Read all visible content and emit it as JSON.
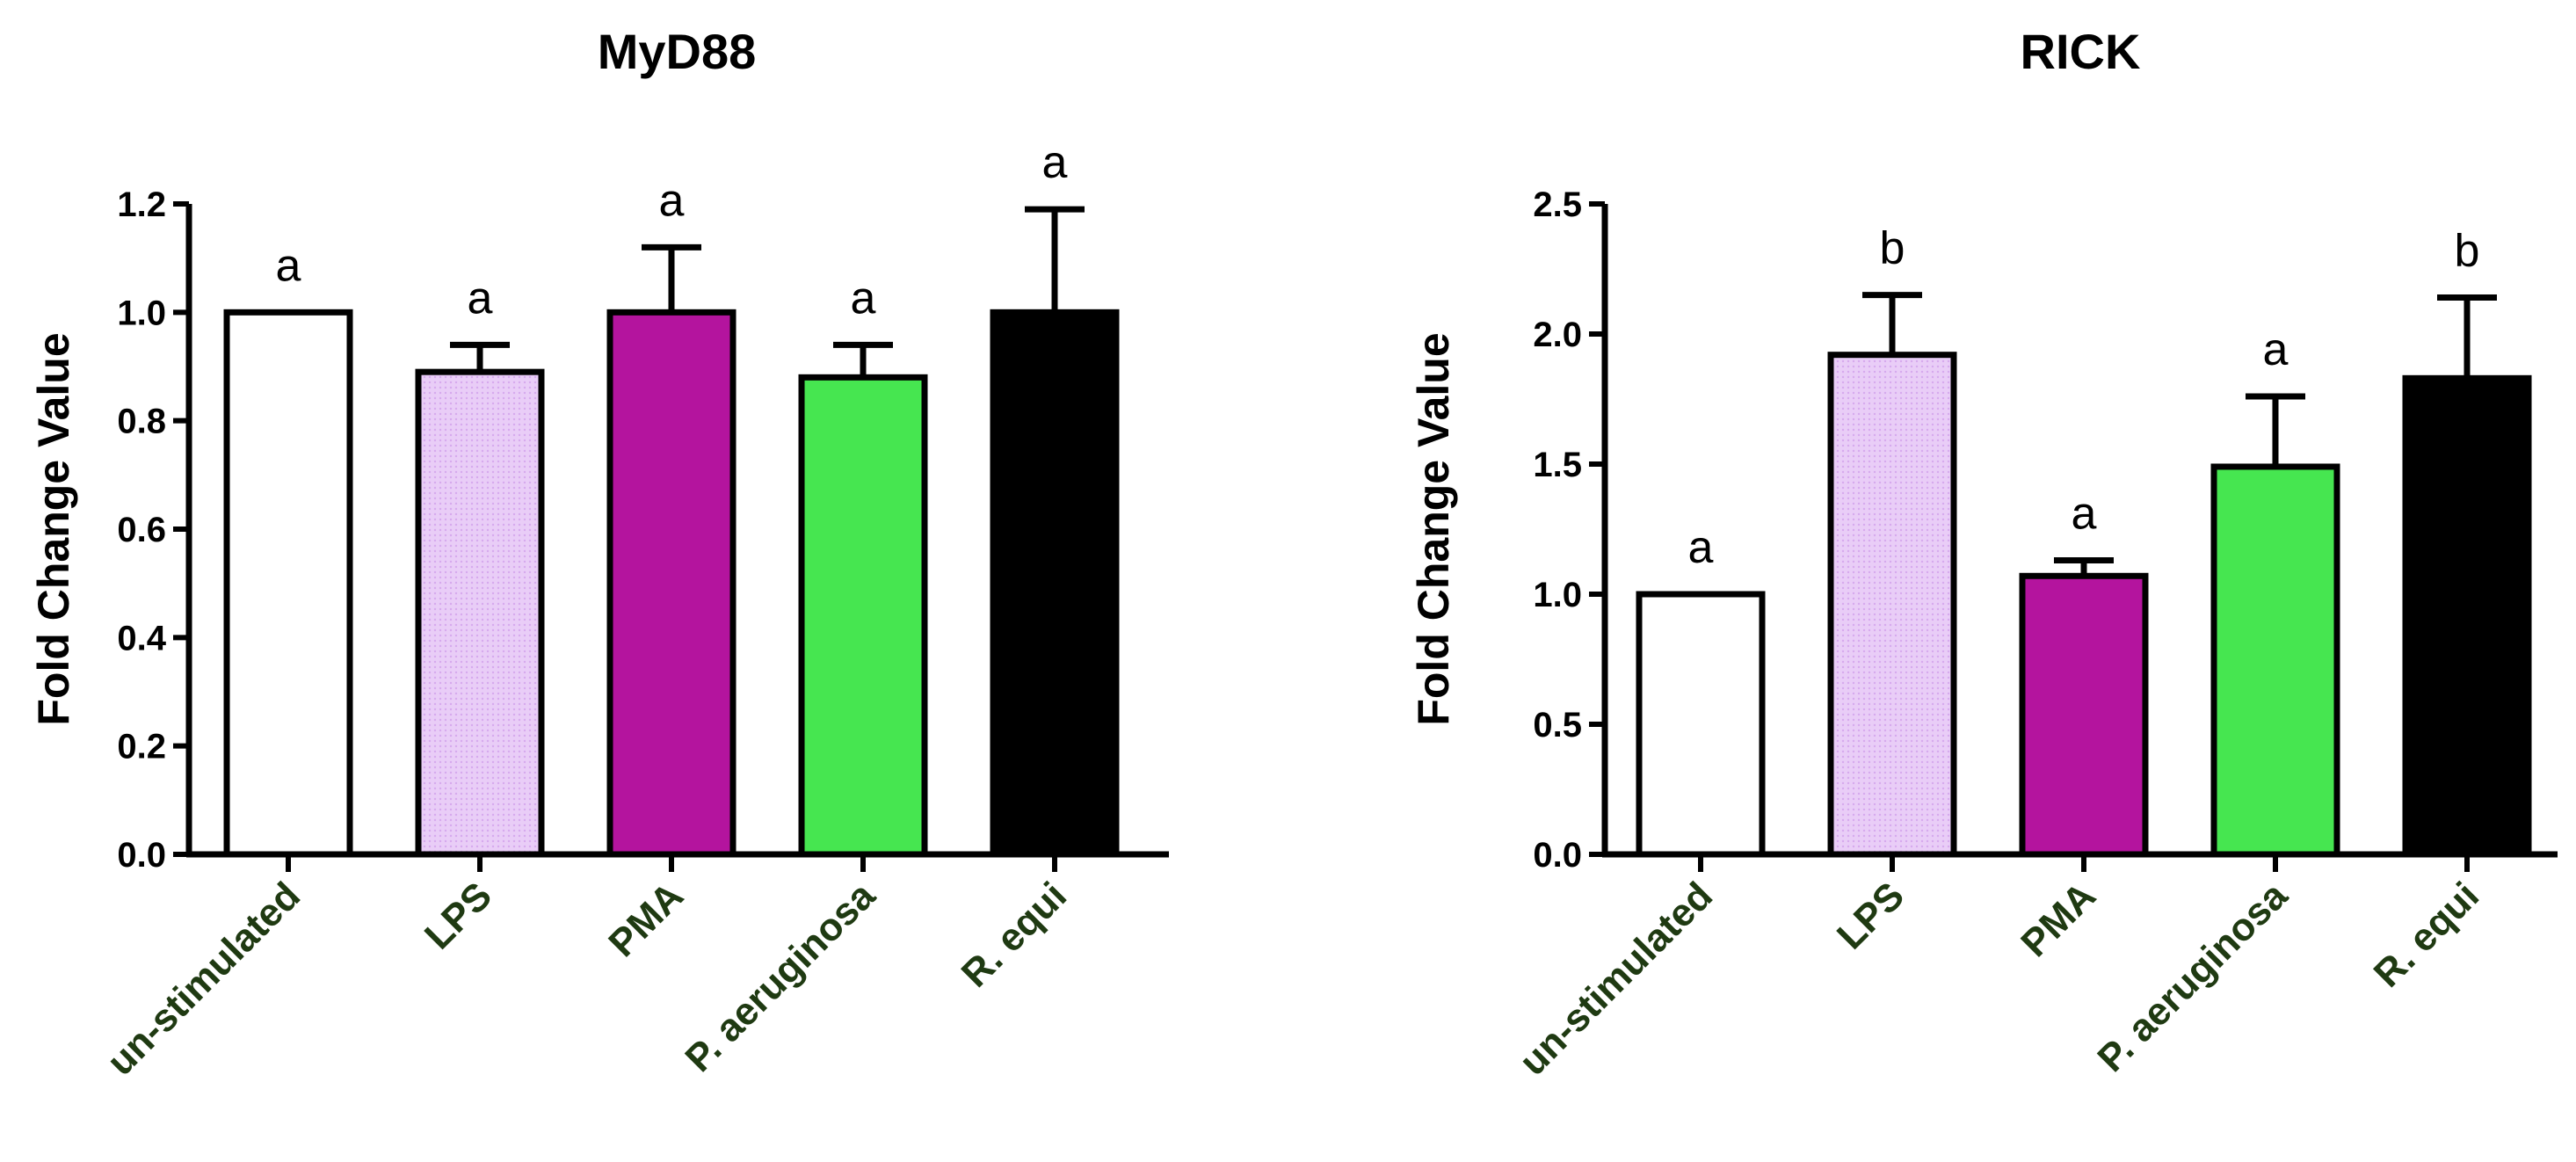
{
  "chart_data": [
    {
      "type": "bar",
      "title": "MyD88",
      "ylabel": "Fold Change Value",
      "xlabel": "",
      "ylim": [
        0,
        1.2
      ],
      "yticks": [
        "0.0",
        "0.2",
        "0.4",
        "0.6",
        "0.8",
        "1.0",
        "1.2"
      ],
      "ytick_values": [
        0,
        0.2,
        0.4,
        0.6,
        0.8,
        1.0,
        1.2
      ],
      "categories": [
        "un-stimulated",
        "LPS",
        "PMA",
        "P. aeruginosa",
        "R. equi"
      ],
      "values": [
        1.0,
        0.89,
        1.0,
        0.88,
        1.0
      ],
      "error_upper": [
        1.0,
        0.94,
        1.12,
        0.94,
        1.19
      ],
      "significance": [
        "a",
        "a",
        "a",
        "a",
        "a"
      ],
      "grid": false,
      "legend": "none"
    },
    {
      "type": "bar",
      "title": "RICK",
      "ylabel": "Fold Change Value",
      "xlabel": "",
      "ylim": [
        0,
        2.5
      ],
      "yticks": [
        "0.0",
        "0.5",
        "1.0",
        "1.5",
        "2.0",
        "2.5"
      ],
      "ytick_values": [
        0,
        0.5,
        1.0,
        1.5,
        2.0,
        2.5
      ],
      "categories": [
        "un-stimulated",
        "LPS",
        "PMA",
        "P. aeruginosa",
        "R. equi"
      ],
      "values": [
        1.0,
        1.92,
        1.07,
        1.49,
        1.83
      ],
      "error_upper": [
        1.0,
        2.15,
        1.13,
        1.76,
        2.14
      ],
      "significance": [
        "a",
        "b",
        "a",
        "a",
        "b"
      ],
      "grid": false,
      "legend": "none"
    }
  ],
  "colors": {
    "bar_fills": [
      "#ffffff",
      "#e6c8f5",
      "#b4149e",
      "#46e650",
      "#000000"
    ],
    "category_label": "#1f3a12",
    "outline": "#000000"
  }
}
